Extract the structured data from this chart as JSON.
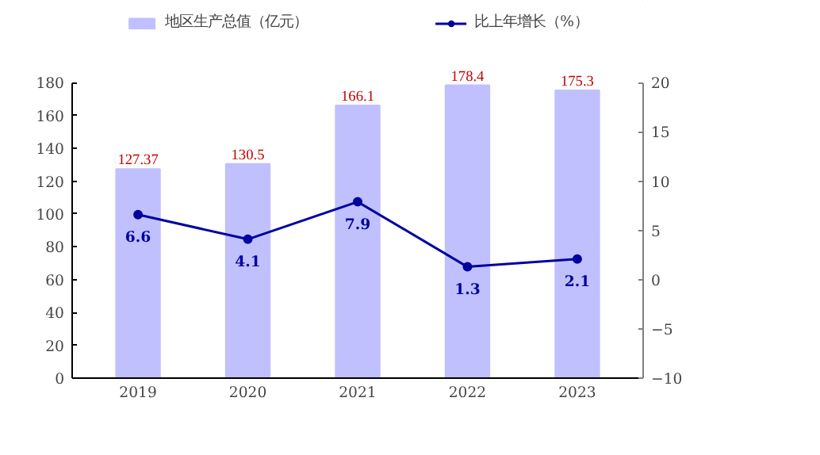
{
  "chart_data": {
    "type": "bar",
    "categories": [
      "2019",
      "2020",
      "2021",
      "2022",
      "2023"
    ],
    "series": [
      {
        "name": "地区生产总值（亿元）",
        "color": "#c0c0ff",
        "values": [
          127.37,
          130.5,
          166.1,
          178.4,
          175.3
        ]
      },
      {
        "name": "比上年增长（%）",
        "type": "line",
        "axis": "y2",
        "color": "#0000a0",
        "values": [
          6.6,
          4.1,
          7.9,
          1.3,
          2.1
        ]
      }
    ],
    "data_labels": true,
    "ylim": [
      0,
      180
    ],
    "yticks": [
      0,
      20,
      40,
      60,
      80,
      100,
      120,
      140,
      160,
      180
    ],
    "y2lim": [
      -10,
      20
    ],
    "y2ticks": [
      -10,
      -5,
      0,
      5,
      10,
      15,
      20
    ],
    "legend": "top",
    "marker": "circle"
  }
}
